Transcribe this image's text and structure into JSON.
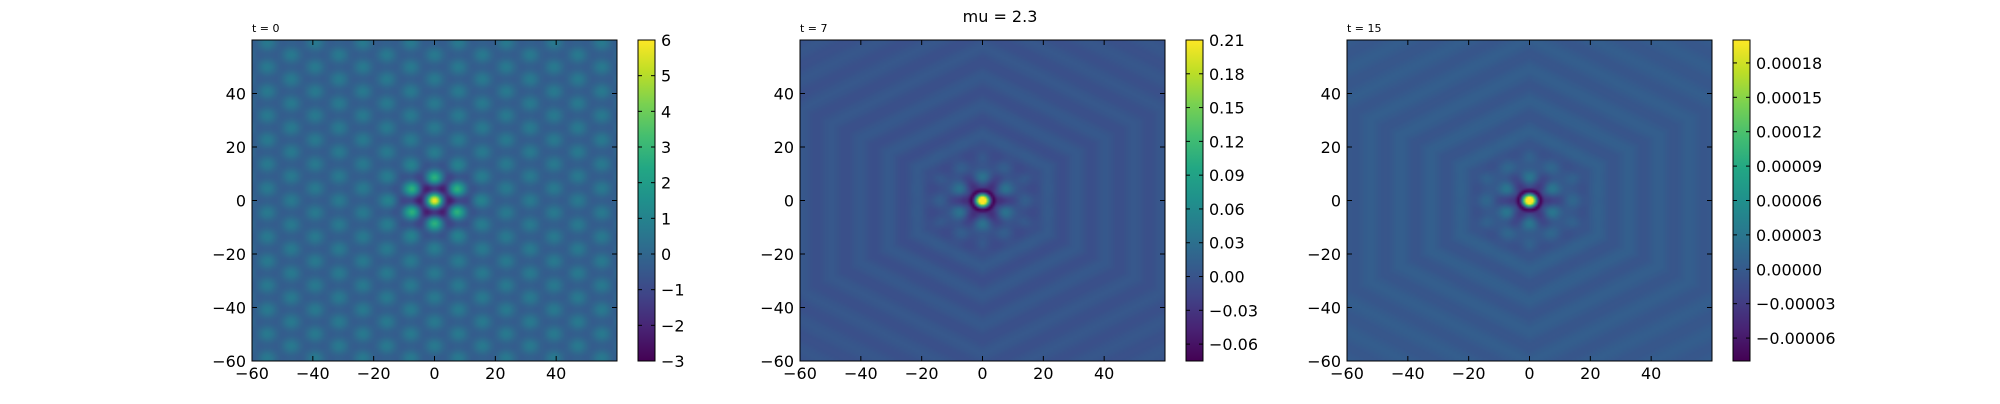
{
  "suptitle": "mu = 2.3",
  "chart_data": [
    {
      "type": "heatmap",
      "title": "t = 0",
      "xlabel": "",
      "ylabel": "",
      "xlim": [
        -60,
        60
      ],
      "ylim": [
        -60,
        60
      ],
      "xticks": [
        -60,
        -40,
        -20,
        0,
        20,
        40
      ],
      "yticks": [
        -60,
        -40,
        -20,
        0,
        20,
        40
      ],
      "xtick_labels": [
        "−60",
        "−40",
        "−20",
        "0",
        "20",
        "40"
      ],
      "ytick_labels": [
        "−60",
        "−40",
        "−20",
        "0",
        "20",
        "40"
      ],
      "colormap": "viridis",
      "pattern": "hexagonal",
      "background_value": 0.0,
      "peak_value": 6,
      "colorbar": {
        "range": [
          -3,
          6
        ],
        "ticks": [
          -3,
          -2,
          -1,
          0,
          1,
          2,
          3,
          4,
          5,
          6
        ],
        "labels": [
          "−3",
          "−2",
          "−1",
          "0",
          "1",
          "2",
          "3",
          "4",
          "5",
          "6"
        ]
      }
    },
    {
      "type": "heatmap",
      "title": "t = 7",
      "xlabel": "",
      "ylabel": "",
      "xlim": [
        -60,
        60
      ],
      "ylim": [
        -60,
        60
      ],
      "xticks": [
        -60,
        -40,
        -20,
        0,
        20,
        40
      ],
      "yticks": [
        -60,
        -40,
        -20,
        0,
        20,
        40
      ],
      "xtick_labels": [
        "−60",
        "−40",
        "−20",
        "0",
        "20",
        "40"
      ],
      "ytick_labels": [
        "−60",
        "−40",
        "−20",
        "0",
        "20",
        "40"
      ],
      "colormap": "viridis",
      "pattern": "hexagonal-rings",
      "background_value": 0.0,
      "peak_value": 0.21,
      "colorbar": {
        "range": [
          -0.075,
          0.21
        ],
        "ticks": [
          -0.06,
          -0.03,
          0.0,
          0.03,
          0.06,
          0.09,
          0.12,
          0.15,
          0.18,
          0.21
        ],
        "labels": [
          "−0.06",
          "−0.03",
          "0.00",
          "0.03",
          "0.06",
          "0.09",
          "0.12",
          "0.15",
          "0.18",
          "0.21"
        ]
      }
    },
    {
      "type": "heatmap",
      "title": "t = 15",
      "xlabel": "",
      "ylabel": "",
      "xlim": [
        -60,
        60
      ],
      "ylim": [
        -60,
        60
      ],
      "xticks": [
        -60,
        -40,
        -20,
        0,
        20,
        40
      ],
      "yticks": [
        -60,
        -40,
        -20,
        0,
        20,
        40
      ],
      "xtick_labels": [
        "−60",
        "−40",
        "−20",
        "0",
        "20",
        "40"
      ],
      "ytick_labels": [
        "−60",
        "−40",
        "−20",
        "0",
        "20",
        "40"
      ],
      "colormap": "viridis",
      "pattern": "hexagonal-rings",
      "background_value": 0.0,
      "peak_value": 0.0002,
      "colorbar": {
        "range": [
          -8e-05,
          0.0002
        ],
        "ticks": [
          -6e-05,
          -3e-05,
          0.0,
          3e-05,
          6e-05,
          9e-05,
          0.00012,
          0.00015,
          0.00018
        ],
        "labels": [
          "−0.00006",
          "−0.00003",
          "0.00000",
          "0.00003",
          "0.00006",
          "0.00009",
          "0.00012",
          "0.00015",
          "0.00018"
        ]
      }
    }
  ]
}
